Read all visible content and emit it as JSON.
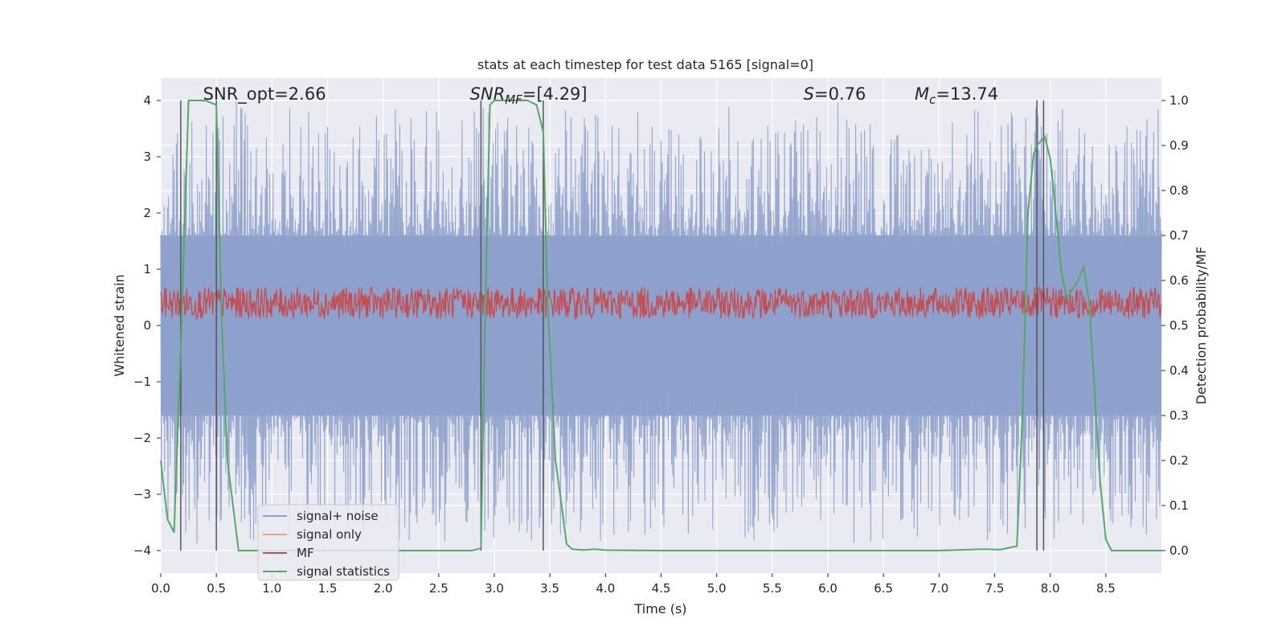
{
  "chart_data": {
    "type": "line",
    "title": "stats at each timestep for test data 5165 [signal=0]",
    "xlabel": "Time (s)",
    "ylabel_left": "Whitened strain",
    "ylabel_right": "Detection probability/MF",
    "xlim": [
      0.0,
      9.0
    ],
    "ylim_left": [
      -4.4,
      4.4
    ],
    "ylim_right": [
      -0.05,
      1.05
    ],
    "x_ticks": [
      0.0,
      0.5,
      1.0,
      1.5,
      2.0,
      2.5,
      3.0,
      3.5,
      4.0,
      4.5,
      5.0,
      5.5,
      6.0,
      6.5,
      7.0,
      7.5,
      8.0,
      8.5
    ],
    "x_tick_labels": [
      "0.0",
      "0.5",
      "1.0",
      "1.5",
      "2.0",
      "2.5",
      "3.0",
      "3.5",
      "4.0",
      "4.5",
      "5.0",
      "5.5",
      "6.0",
      "6.5",
      "7.0",
      "7.5",
      "8.0",
      "8.5"
    ],
    "y_left_ticks": [
      4,
      3,
      2,
      1,
      0,
      -1,
      -2,
      -3,
      -4
    ],
    "y_left_tick_labels": [
      "4",
      "3",
      "2",
      "1",
      "0",
      "−1",
      "−2",
      "−3",
      "−4"
    ],
    "y_right_ticks": [
      1.0,
      0.9,
      0.8,
      0.7,
      0.6,
      0.5,
      0.4,
      0.3,
      0.2,
      0.1,
      0.0
    ],
    "y_right_tick_labels": [
      "1.0",
      "0.9",
      "0.8",
      "0.7",
      "0.6",
      "0.5",
      "0.4",
      "0.3",
      "0.2",
      "0.1",
      "0.0"
    ],
    "grid": true,
    "legend_position": "lower-left",
    "legend": [
      {
        "label": "signal+ noise",
        "color": "#8da0cb"
      },
      {
        "label": "signal only",
        "color": "#e9a58a"
      },
      {
        "label": "MF",
        "color": "#c44e52"
      },
      {
        "label": "signal statistics",
        "color": "#55a868"
      }
    ],
    "annotations": [
      {
        "text": "SNR_opt=2.66",
        "x": 0.2
      },
      {
        "text": "SNR",
        "sub": "MF",
        "suffix": "=[4.29]",
        "x": 2.6
      },
      {
        "text": "S",
        "suffix": "=0.76",
        "x": 5.6
      },
      {
        "text": "M",
        "sub": "c",
        "suffix": "=13.74",
        "x": 6.6
      }
    ],
    "vertical_markers": [
      0.18,
      0.5,
      2.88,
      3.44,
      7.88,
      7.94
    ],
    "noise_envelope": {
      "min": -4.0,
      "max": 4.0,
      "typical_abs": 1.6
    },
    "mf_band": {
      "min": 0.5,
      "max": 0.6
    },
    "series": [
      {
        "name": "signal statistics",
        "axis": "right",
        "x": [
          0.0,
          0.06,
          0.12,
          0.18,
          0.25,
          0.3,
          0.4,
          0.5,
          0.55,
          0.6,
          0.7,
          0.8,
          1.0,
          1.5,
          2.0,
          2.5,
          2.8,
          2.88,
          2.92,
          2.96,
          3.0,
          3.1,
          3.2,
          3.3,
          3.38,
          3.44,
          3.48,
          3.55,
          3.6,
          3.65,
          3.7,
          3.8,
          3.9,
          4.0,
          4.5,
          5.0,
          5.5,
          6.0,
          6.5,
          7.0,
          7.4,
          7.55,
          7.7,
          7.75,
          7.8,
          7.85,
          7.88,
          7.95,
          8.0,
          8.05,
          8.1,
          8.15,
          8.2,
          8.25,
          8.3,
          8.35,
          8.4,
          8.45,
          8.5,
          8.55,
          8.6,
          8.7,
          8.8,
          9.0
        ],
        "values": [
          0.2,
          0.07,
          0.04,
          0.45,
          1.0,
          1.0,
          1.0,
          0.99,
          0.5,
          0.2,
          0.0,
          0.0,
          0.0,
          0.0,
          0.0,
          0.0,
          0.0,
          0.005,
          0.55,
          0.99,
          1.0,
          1.0,
          1.0,
          1.0,
          0.99,
          0.93,
          0.55,
          0.2,
          0.11,
          0.015,
          0.003,
          0.001,
          0.003,
          0.001,
          0.0,
          0.0,
          0.0,
          0.0,
          0.0,
          0.0,
          0.003,
          0.002,
          0.01,
          0.3,
          0.75,
          0.88,
          0.9,
          0.92,
          0.87,
          0.75,
          0.62,
          0.56,
          0.58,
          0.6,
          0.63,
          0.55,
          0.35,
          0.15,
          0.025,
          0.0,
          0.0,
          0.0,
          0.0,
          0.0
        ]
      }
    ]
  }
}
